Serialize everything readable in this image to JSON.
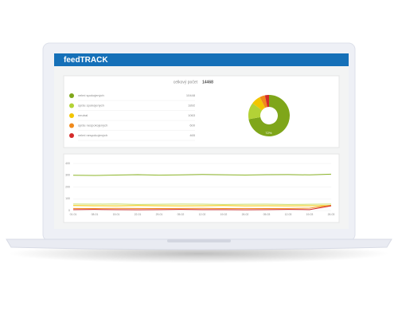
{
  "app": {
    "title": "feedTRACK"
  },
  "summary": {
    "label": "celkový počet",
    "total": 14468
  },
  "chart_data": [
    {
      "type": "pie",
      "categories": [
        "velmi spokojených",
        "spíše spokojených",
        "neutral",
        "spíše nespokojených",
        "velmi nespokojených"
      ],
      "values": [
        10448,
        1892,
        1063,
        600,
        465
      ],
      "colors": [
        "#7fa61a",
        "#b3d236",
        "#f2c500",
        "#f08a1c",
        "#d42a2a"
      ],
      "value_labels": [
        "72%",
        null,
        null,
        null,
        null
      ]
    },
    {
      "type": "line",
      "categories": [
        "01.01",
        "08.01",
        "15.01",
        "22.01",
        "29.01",
        "05.02",
        "12.02",
        "19.02",
        "26.02",
        "05.03",
        "12.03",
        "19.03",
        "26.03"
      ],
      "series": [
        {
          "name": "velmi spokojených",
          "color": "#8db62a",
          "values": [
            300,
            298,
            302,
            305,
            301,
            303,
            307,
            304,
            302,
            305,
            306,
            303,
            309
          ]
        },
        {
          "name": "spíše spokojených",
          "color": "#c9de6a",
          "values": [
            55,
            54,
            56,
            52,
            53,
            55,
            54,
            52,
            53,
            54,
            52,
            53,
            55
          ]
        },
        {
          "name": "neutral",
          "color": "#f2c500",
          "values": [
            42,
            41,
            40,
            42,
            41,
            40,
            41,
            42,
            40,
            41,
            40,
            41,
            42
          ]
        },
        {
          "name": "spíše nespokojených",
          "color": "#f08a1c",
          "values": [
            18,
            17,
            19,
            18,
            17,
            18,
            19,
            17,
            18,
            17,
            18,
            20,
            45
          ]
        },
        {
          "name": "velmi nespokojených",
          "color": "#d42a2a",
          "values": [
            8,
            9,
            8,
            7,
            8,
            9,
            8,
            8,
            7,
            8,
            9,
            8,
            40
          ]
        }
      ],
      "ylim": [
        0,
        400
      ],
      "yticks": [
        0,
        100,
        200,
        300,
        400
      ],
      "grid": true
    }
  ]
}
